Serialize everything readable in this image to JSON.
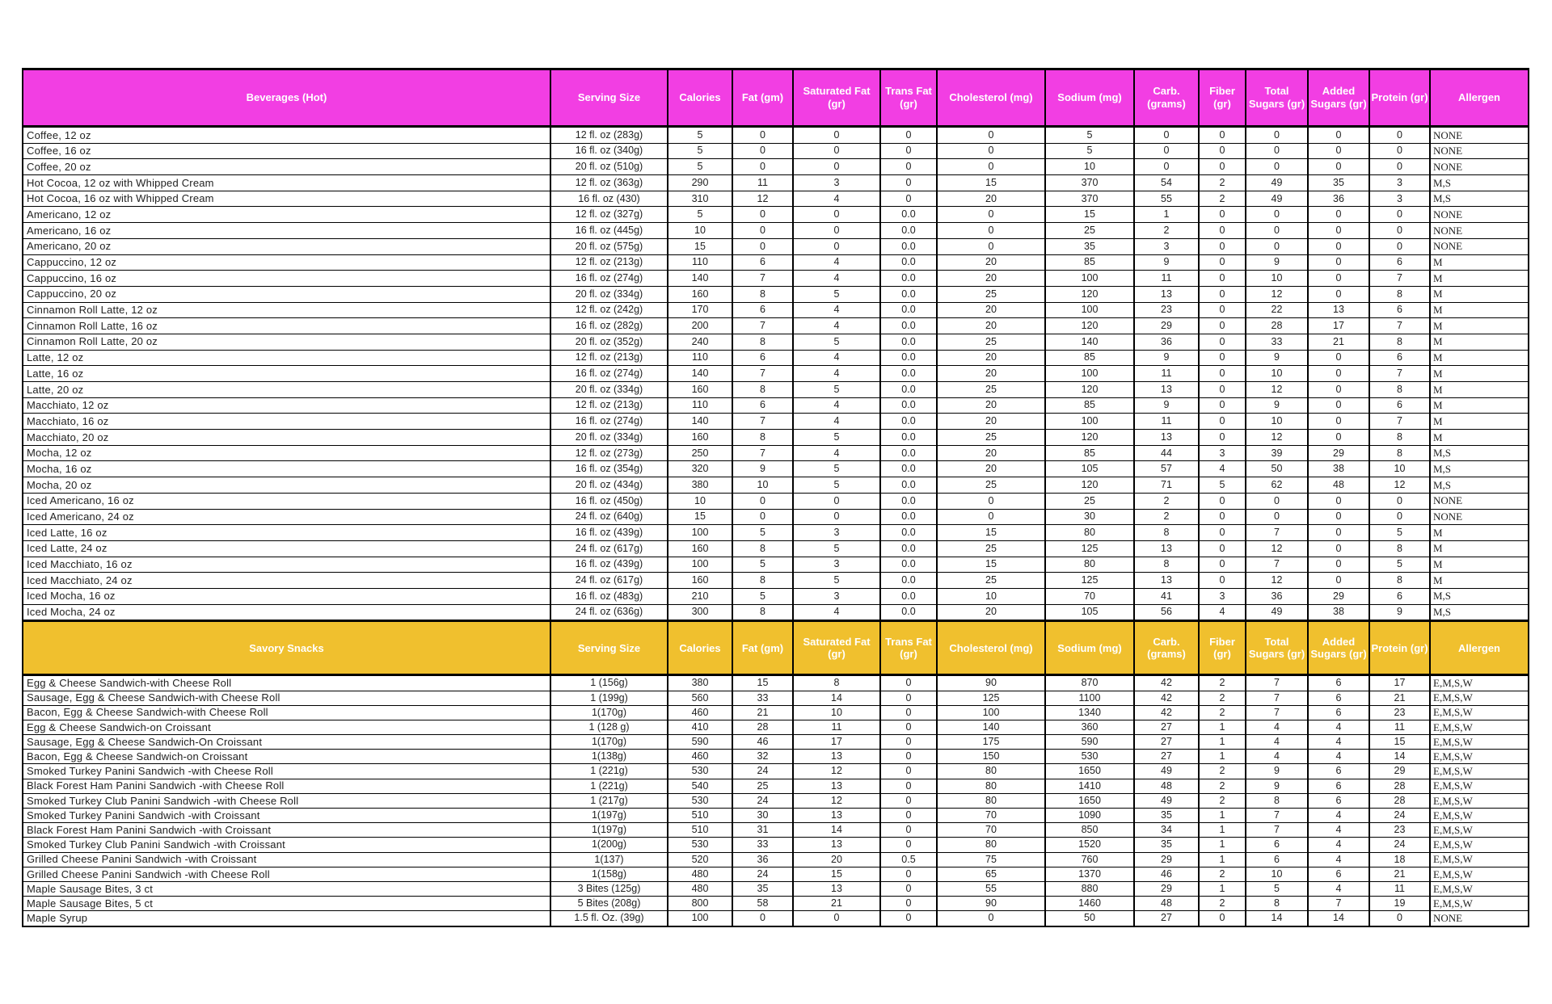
{
  "page": {
    "background": "#ffffff",
    "text_color": "#222222",
    "border_color": "#000000"
  },
  "table": {
    "column_headers": [
      "Serving Size",
      "Calories",
      "Fat (gm)",
      "Saturated Fat (gr)",
      "Trans Fat (gr)",
      "Cholesterol (mg)",
      "Sodium (mg)",
      "Carb. (grams)",
      "Fiber (gr)",
      "Total Sugars (gr)",
      "Added Sugars (gr)",
      "Protein (gr)",
      "Allergen"
    ],
    "sections": [
      {
        "title": "Beverages (Hot)",
        "header_color": "#f23ee3",
        "rows": [
          [
            "Coffee, 12 oz",
            "12 fl. oz (283g)",
            "5",
            "0",
            "0",
            "0",
            "0",
            "5",
            "0",
            "0",
            "0",
            "0",
            "0",
            "NONE"
          ],
          [
            "Coffee, 16 oz",
            "16 fl. oz (340g)",
            "5",
            "0",
            "0",
            "0",
            "0",
            "5",
            "0",
            "0",
            "0",
            "0",
            "0",
            "NONE"
          ],
          [
            "Coffee, 20 oz",
            "20 fl. oz (510g)",
            "5",
            "0",
            "0",
            "0",
            "0",
            "10",
            "0",
            "0",
            "0",
            "0",
            "0",
            "NONE"
          ],
          [
            "Hot Cocoa, 12 oz with Whipped Cream",
            "12 fl. oz (363g)",
            "290",
            "11",
            "3",
            "0",
            "15",
            "370",
            "54",
            "2",
            "49",
            "35",
            "3",
            "M,S"
          ],
          [
            "Hot Cocoa, 16 oz with  Whipped Cream",
            "16 fl. oz (430)",
            "310",
            "12",
            "4",
            "0",
            "20",
            "370",
            "55",
            "2",
            "49",
            "36",
            "3",
            "M,S"
          ],
          [
            "Americano, 12 oz",
            "12 fl. oz (327g)",
            "5",
            "0",
            "0",
            "0.0",
            "0",
            "15",
            "1",
            "0",
            "0",
            "0",
            "0",
            "NONE"
          ],
          [
            "Americano, 16 oz",
            "16 fl. oz (445g)",
            "10",
            "0",
            "0",
            "0.0",
            "0",
            "25",
            "2",
            "0",
            "0",
            "0",
            "0",
            "NONE"
          ],
          [
            "Americano, 20 oz",
            "20 fl. oz (575g)",
            "15",
            "0",
            "0",
            "0.0",
            "0",
            "35",
            "3",
            "0",
            "0",
            "0",
            "0",
            "NONE"
          ],
          [
            "Cappuccino, 12 oz",
            "12 fl. oz (213g)",
            "110",
            "6",
            "4",
            "0.0",
            "20",
            "85",
            "9",
            "0",
            "9",
            "0",
            "6",
            "M"
          ],
          [
            "Cappuccino, 16 oz",
            "16 fl. oz (274g)",
            "140",
            "7",
            "4",
            "0.0",
            "20",
            "100",
            "11",
            "0",
            "10",
            "0",
            "7",
            "M"
          ],
          [
            "Cappuccino, 20 oz",
            "20 fl. oz (334g)",
            "160",
            "8",
            "5",
            "0.0",
            "25",
            "120",
            "13",
            "0",
            "12",
            "0",
            "8",
            "M"
          ],
          [
            "Cinnamon Roll Latte, 12 oz",
            "12 fl. oz (242g)",
            "170",
            "6",
            "4",
            "0.0",
            "20",
            "100",
            "23",
            "0",
            "22",
            "13",
            "6",
            "M"
          ],
          [
            "Cinnamon Roll Latte, 16 oz",
            "16 fl. oz (282g)",
            "200",
            "7",
            "4",
            "0.0",
            "20",
            "120",
            "29",
            "0",
            "28",
            "17",
            "7",
            "M"
          ],
          [
            "Cinnamon Roll Latte, 20 oz",
            "20 fl. oz (352g)",
            "240",
            "8",
            "5",
            "0.0",
            "25",
            "140",
            "36",
            "0",
            "33",
            "21",
            "8",
            "M"
          ],
          [
            "Latte, 12 oz",
            "12 fl. oz (213g)",
            "110",
            "6",
            "4",
            "0.0",
            "20",
            "85",
            "9",
            "0",
            "9",
            "0",
            "6",
            "M"
          ],
          [
            "Latte, 16 oz",
            "16 fl. oz (274g)",
            "140",
            "7",
            "4",
            "0.0",
            "20",
            "100",
            "11",
            "0",
            "10",
            "0",
            "7",
            "M"
          ],
          [
            "Latte, 20 oz",
            "20 fl. oz (334g)",
            "160",
            "8",
            "5",
            "0.0",
            "25",
            "120",
            "13",
            "0",
            "12",
            "0",
            "8",
            "M"
          ],
          [
            "Macchiato, 12 oz",
            "12 fl. oz (213g)",
            "110",
            "6",
            "4",
            "0.0",
            "20",
            "85",
            "9",
            "0",
            "9",
            "0",
            "6",
            "M"
          ],
          [
            "Macchiato, 16 oz",
            "16 fl. oz (274g)",
            "140",
            "7",
            "4",
            "0.0",
            "20",
            "100",
            "11",
            "0",
            "10",
            "0",
            "7",
            "M"
          ],
          [
            "Macchiato, 20 oz",
            "20 fl. oz (334g)",
            "160",
            "8",
            "5",
            "0.0",
            "25",
            "120",
            "13",
            "0",
            "12",
            "0",
            "8",
            "M"
          ],
          [
            "Mocha, 12 oz",
            "12 fl. oz (273g)",
            "250",
            "7",
            "4",
            "0.0",
            "20",
            "85",
            "44",
            "3",
            "39",
            "29",
            "8",
            "M,S"
          ],
          [
            "Mocha, 16 oz",
            "16 fl. oz (354g)",
            "320",
            "9",
            "5",
            "0.0",
            "20",
            "105",
            "57",
            "4",
            "50",
            "38",
            "10",
            "M,S"
          ],
          [
            "Mocha, 20 oz",
            "20 fl. oz (434g)",
            "380",
            "10",
            "5",
            "0.0",
            "25",
            "120",
            "71",
            "5",
            "62",
            "48",
            "12",
            "M,S"
          ],
          [
            "Iced Americano, 16 oz",
            "16 fl. oz (450g)",
            "10",
            "0",
            "0",
            "0.0",
            "0",
            "25",
            "2",
            "0",
            "0",
            "0",
            "0",
            "NONE"
          ],
          [
            "Iced Americano, 24 oz",
            "24 fl. oz (640g)",
            "15",
            "0",
            "0",
            "0.0",
            "0",
            "30",
            "2",
            "0",
            "0",
            "0",
            "0",
            "NONE"
          ],
          [
            "Iced Latte, 16 oz",
            "16 fl. oz (439g)",
            "100",
            "5",
            "3",
            "0.0",
            "15",
            "80",
            "8",
            "0",
            "7",
            "0",
            "5",
            "M"
          ],
          [
            "Iced Latte, 24 oz",
            "24 fl. oz (617g)",
            "160",
            "8",
            "5",
            "0.0",
            "25",
            "125",
            "13",
            "0",
            "12",
            "0",
            "8",
            "M"
          ],
          [
            "Iced Macchiato, 16 oz",
            "16 fl. oz (439g)",
            "100",
            "5",
            "3",
            "0.0",
            "15",
            "80",
            "8",
            "0",
            "7",
            "0",
            "5",
            "M"
          ],
          [
            "Iced Macchiato, 24 oz",
            "24 fl. oz (617g)",
            "160",
            "8",
            "5",
            "0.0",
            "25",
            "125",
            "13",
            "0",
            "12",
            "0",
            "8",
            "M"
          ],
          [
            "Iced Mocha, 16 oz",
            "16 fl. oz (483g)",
            "210",
            "5",
            "3",
            "0.0",
            "10",
            "70",
            "41",
            "3",
            "36",
            "29",
            "6",
            "M,S"
          ],
          [
            "Iced Mocha, 24 oz",
            "24 fl. oz (636g)",
            "300",
            "8",
            "4",
            "0.0",
            "20",
            "105",
            "56",
            "4",
            "49",
            "38",
            "9",
            "M,S"
          ]
        ]
      },
      {
        "title": "Savory Snacks",
        "header_color": "#f0c02e",
        "rows": [
          [
            "Egg & Cheese Sandwich-with Cheese Roll",
            "1 (156g)",
            "380",
            "15",
            "8",
            "0",
            "90",
            "870",
            "42",
            "2",
            "7",
            "6",
            "17",
            "E,M,S,W"
          ],
          [
            "Sausage, Egg & Cheese Sandwich-with Cheese Roll",
            "1 (199g)",
            "560",
            "33",
            "14",
            "0",
            "125",
            "1100",
            "42",
            "2",
            "7",
            "6",
            "21",
            "E,M,S,W"
          ],
          [
            "Bacon, Egg & Cheese Sandwich-with Cheese Roll",
            "1(170g)",
            "460",
            "21",
            "10",
            "0",
            "100",
            "1340",
            "42",
            "2",
            "7",
            "6",
            "23",
            "E,M,S,W"
          ],
          [
            "Egg & Cheese Sandwich-on Croissant",
            "1 (128 g)",
            "410",
            "28",
            "11",
            "0",
            "140",
            "360",
            "27",
            "1",
            "4",
            "4",
            "11",
            "E,M,S,W"
          ],
          [
            "Sausage, Egg & Cheese Sandwich-On Croissant",
            "1(170g)",
            "590",
            "46",
            "17",
            "0",
            "175",
            "590",
            "27",
            "1",
            "4",
            "4",
            "15",
            "E,M,S,W"
          ],
          [
            "Bacon, Egg & Cheese Sandwich-on Croissant",
            "1(138g)",
            "460",
            "32",
            "13",
            "0",
            "150",
            "530",
            "27",
            "1",
            "4",
            "4",
            "14",
            "E,M,S,W"
          ],
          [
            "Smoked Turkey Panini Sandwich -with Cheese Roll",
            "1 (221g)",
            "530",
            "24",
            "12",
            "0",
            "80",
            "1650",
            "49",
            "2",
            "9",
            "6",
            "29",
            "E,M,S,W"
          ],
          [
            "Black Forest Ham Panini Sandwich -with Cheese Roll",
            "1 (221g)",
            "540",
            "25",
            "13",
            "0",
            "80",
            "1410",
            "48",
            "2",
            "9",
            "6",
            "28",
            "E,M,S,W"
          ],
          [
            "Smoked Turkey Club Panini Sandwich -with Cheese Roll",
            "1 (217g)",
            "530",
            "24",
            "12",
            "0",
            "80",
            "1650",
            "49",
            "2",
            "8",
            "6",
            "28",
            "E,M,S,W"
          ],
          [
            "Smoked Turkey Panini Sandwich -with Croissant",
            "1(197g)",
            "510",
            "30",
            "13",
            "0",
            "70",
            "1090",
            "35",
            "1",
            "7",
            "4",
            "24",
            "E,M,S,W"
          ],
          [
            "Black Forest Ham Panini Sandwich -with Croissant",
            "1(197g)",
            "510",
            "31",
            "14",
            "0",
            "70",
            "850",
            "34",
            "1",
            "7",
            "4",
            "23",
            "E,M,S,W"
          ],
          [
            "Smoked Turkey Club Panini Sandwich -with Croissant",
            "1(200g)",
            "530",
            "33",
            "13",
            "0",
            "80",
            "1520",
            "35",
            "1",
            "6",
            "4",
            "24",
            "E,M,S,W"
          ],
          [
            "Grilled Cheese Panini Sandwich -with Croissant",
            "1(137)",
            "520",
            "36",
            "20",
            "0.5",
            "75",
            "760",
            "29",
            "1",
            "6",
            "4",
            "18",
            "E,M,S,W"
          ],
          [
            "Grilled Cheese Panini Sandwich -with Cheese Roll",
            "1(158g)",
            "480",
            "24",
            "15",
            "0",
            "65",
            "1370",
            "46",
            "2",
            "10",
            "6",
            "21",
            "E,M,S,W"
          ],
          [
            "Maple Sausage Bites, 3 ct",
            "3 Bites (125g)",
            "480",
            "35",
            "13",
            "0",
            "55",
            "880",
            "29",
            "1",
            "5",
            "4",
            "11",
            "E,M,S,W"
          ],
          [
            "Maple Sausage Bites, 5 ct",
            "5 Bites (208g)",
            "800",
            "58",
            "21",
            "0",
            "90",
            "1460",
            "48",
            "2",
            "8",
            "7",
            "19",
            "E,M,S,W"
          ],
          [
            "Maple Syrup",
            "1.5 fl. Oz. (39g)",
            "100",
            "0",
            "0",
            "0",
            "0",
            "50",
            "27",
            "0",
            "14",
            "14",
            "0",
            "NONE"
          ]
        ]
      }
    ]
  }
}
